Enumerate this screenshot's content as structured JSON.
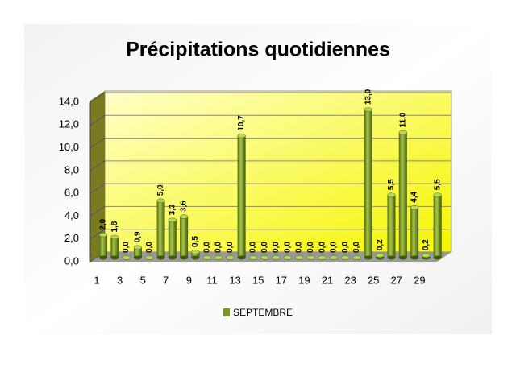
{
  "chart_data": {
    "type": "bar",
    "title": "Précipitations quotidiennes",
    "categories": [
      "1",
      null,
      "3",
      null,
      "5",
      null,
      "7",
      null,
      "9",
      null,
      "11",
      null,
      "13",
      null,
      "15",
      null,
      "17",
      null,
      "19",
      null,
      "21",
      null,
      "23",
      null,
      "25",
      null,
      "27",
      null,
      "29",
      null
    ],
    "series": [
      {
        "name": "SEPTEMBRE",
        "color": "#7a9a1e",
        "values": [
          2.0,
          1.8,
          0.0,
          0.9,
          0.0,
          5.0,
          3.3,
          3.6,
          0.5,
          0.0,
          0.0,
          0.0,
          10.7,
          0.0,
          0.0,
          0.0,
          0.0,
          0.0,
          0.0,
          0.0,
          0.0,
          0.0,
          0.0,
          13.0,
          0.2,
          5.5,
          11.0,
          4.4,
          0.2,
          5.5
        ],
        "value_labels": [
          "2,0",
          "1,8",
          "0,0",
          "0,9",
          "0,0",
          "5,0",
          "3,3",
          "3,6",
          "0,5",
          "0,0",
          "0,0",
          "0,0",
          "10,7",
          "0,0",
          "0,0",
          "0,0",
          "0,0",
          "0,0",
          "0,0",
          "0,0",
          "0,0",
          "0,0",
          "0,0",
          "13,0",
          "0,2",
          "5,5",
          "11,0",
          "4,4",
          "0,2",
          "5,5"
        ]
      }
    ],
    "ylim": [
      0,
      14
    ],
    "yticks": [
      {
        "value": 0,
        "label": "0,0"
      },
      {
        "value": 2,
        "label": "2,0"
      },
      {
        "value": 4,
        "label": "4,0"
      },
      {
        "value": 6,
        "label": "6,0"
      },
      {
        "value": 8,
        "label": "8,0"
      },
      {
        "value": 10,
        "label": "10,0"
      },
      {
        "value": 12,
        "label": "12,0"
      },
      {
        "value": 14,
        "label": "14,0"
      }
    ],
    "grid": true,
    "legend": "bottom"
  }
}
